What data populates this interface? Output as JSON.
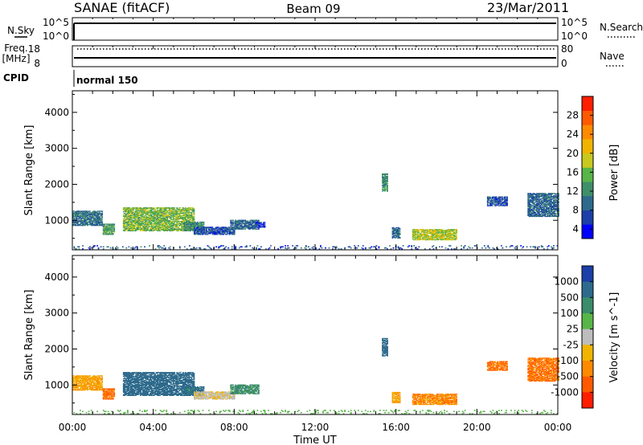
{
  "header": {
    "station": "SANAE (fitACF)",
    "beam": "Beam 09",
    "date": "23/Mar/2011"
  },
  "status_panels": {
    "nsky": {
      "label": "N.Sky",
      "ticks": [
        "10^5",
        "10^0"
      ],
      "right_ticks": [
        "10^5",
        "10^0"
      ],
      "right_label": "N.Search"
    },
    "freq": {
      "label_line1": "Freq.",
      "label_line2": "[MHz]",
      "ticks": [
        "18",
        "8"
      ],
      "right_ticks": [
        "80",
        "0"
      ],
      "right_label": "Nave"
    },
    "cpid": {
      "label": "CPID",
      "value": "normal 150"
    }
  },
  "x_axis": {
    "label": "Time UT",
    "tick_labels": [
      "00:00",
      "04:00",
      "08:00",
      "12:00",
      "16:00",
      "20:00",
      "00:00"
    ],
    "range_hours": [
      0,
      24
    ]
  },
  "power_colorbar": {
    "label": "Power [dB]",
    "tick_labels": [
      "28",
      "24",
      "20",
      "16",
      "12",
      "8",
      "4"
    ],
    "colors": [
      "#0000ff",
      "#1c3fa8",
      "#2e6a8c",
      "#3f8f6b",
      "#58b548",
      "#c8c81e",
      "#f0b400",
      "#ff8a00",
      "#ff5a00",
      "#ff1e00"
    ]
  },
  "velocity_colorbar": {
    "label": "Velocity [m s^-1]",
    "tick_labels": [
      "1000",
      "500",
      "100",
      "25",
      "-25",
      "-100",
      "-500",
      "-1000"
    ],
    "colors": [
      "#1c3fa8",
      "#2e6a8c",
      "#3a8c6a",
      "#58b548",
      "#bdbdbd",
      "#f0b400",
      "#ff8a00",
      "#ff5a00",
      "#ff1e00"
    ]
  },
  "chart_data": [
    {
      "type": "heatmap",
      "panel": "power",
      "ylabel": "Slant Range [km]",
      "ylim": [
        180,
        4600
      ],
      "y_tick_labels": [
        "1000",
        "2000",
        "3000",
        "4000"
      ],
      "x_unit": "hours UT",
      "zlabel": "Power [dB]",
      "patches": [
        {
          "t": [
            0.0,
            1.5
          ],
          "r": [
            850,
            1250
          ],
          "z": 10
        },
        {
          "t": [
            1.5,
            2.1
          ],
          "r": [
            600,
            900
          ],
          "z": 14
        },
        {
          "t": [
            2.5,
            6.0
          ],
          "r": [
            700,
            1350
          ],
          "z": 16
        },
        {
          "t": [
            5.5,
            6.5
          ],
          "r": [
            700,
            950
          ],
          "z": 12
        },
        {
          "t": [
            6.0,
            8.0
          ],
          "r": [
            600,
            800
          ],
          "z": 8
        },
        {
          "t": [
            7.8,
            9.2
          ],
          "r": [
            750,
            1000
          ],
          "z": 9
        },
        {
          "t": [
            9.0,
            9.5
          ],
          "r": [
            800,
            950
          ],
          "z": 6
        },
        {
          "t": [
            15.3,
            15.6
          ],
          "r": [
            1800,
            2300
          ],
          "z": 12
        },
        {
          "t": [
            15.8,
            16.2
          ],
          "r": [
            500,
            800
          ],
          "z": 10
        },
        {
          "t": [
            16.8,
            19.0
          ],
          "r": [
            450,
            750
          ],
          "z": 18
        },
        {
          "t": [
            20.5,
            21.5
          ],
          "r": [
            1400,
            1650
          ],
          "z": 8
        },
        {
          "t": [
            22.5,
            24.0
          ],
          "r": [
            1100,
            1750
          ],
          "z": 9
        },
        {
          "t": [
            0.0,
            24.0
          ],
          "r": [
            190,
            300
          ],
          "z": 8
        }
      ]
    },
    {
      "type": "heatmap",
      "panel": "velocity",
      "ylabel": "Slant Range [km]",
      "ylim": [
        180,
        4600
      ],
      "y_tick_labels": [
        "1000",
        "2000",
        "3000",
        "4000"
      ],
      "x_unit": "hours UT",
      "zlabel": "Velocity [m s^-1]",
      "patches": [
        {
          "t": [
            0.0,
            1.5
          ],
          "r": [
            850,
            1250
          ],
          "z": -300
        },
        {
          "t": [
            1.5,
            2.1
          ],
          "r": [
            600,
            900
          ],
          "z": -500
        },
        {
          "t": [
            2.5,
            6.0
          ],
          "r": [
            700,
            1350
          ],
          "z": 200
        },
        {
          "t": [
            5.5,
            6.5
          ],
          "r": [
            700,
            950
          ],
          "z": 150
        },
        {
          "t": [
            6.0,
            8.0
          ],
          "r": [
            600,
            800
          ],
          "z": -80
        },
        {
          "t": [
            7.8,
            9.2
          ],
          "r": [
            750,
            1000
          ],
          "z": 60
        },
        {
          "t": [
            15.3,
            15.6
          ],
          "r": [
            1800,
            2300
          ],
          "z": 200
        },
        {
          "t": [
            15.8,
            16.2
          ],
          "r": [
            500,
            800
          ],
          "z": -300
        },
        {
          "t": [
            16.8,
            19.0
          ],
          "r": [
            450,
            750
          ],
          "z": -400
        },
        {
          "t": [
            20.5,
            21.5
          ],
          "r": [
            1400,
            1650
          ],
          "z": -500
        },
        {
          "t": [
            22.5,
            24.0
          ],
          "r": [
            1100,
            1750
          ],
          "z": -500
        },
        {
          "t": [
            0.0,
            24.0
          ],
          "r": [
            190,
            300
          ],
          "z": 0
        }
      ]
    }
  ]
}
